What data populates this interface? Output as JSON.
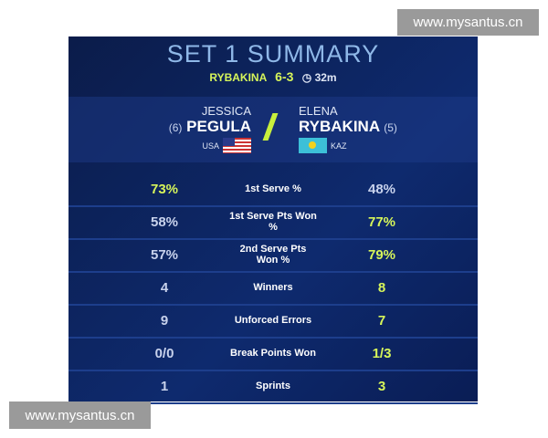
{
  "watermark": "www.mysantus.cn",
  "header": {
    "title": "SET 1 SUMMARY",
    "winner": "RYBAKINA",
    "score": "6-3",
    "clock_icon": "clock-icon",
    "duration": "32m"
  },
  "players": [
    {
      "first": "JESSICA",
      "last": "PEGULA",
      "seed": "(6)",
      "country": "USA"
    },
    {
      "first": "ELENA",
      "last": "RYBAKINA",
      "seed": "(5)",
      "country": "KAZ"
    }
  ],
  "highlight_color": "#d6f55a",
  "stats": [
    {
      "label": "1st Serve %",
      "left": "73%",
      "right": "48%",
      "leader": "left"
    },
    {
      "label": "1st Serve Pts Won %",
      "left": "58%",
      "right": "77%",
      "leader": "right"
    },
    {
      "label": "2nd Serve Pts Won %",
      "left": "57%",
      "right": "79%",
      "leader": "right"
    },
    {
      "label": "Winners",
      "left": "4",
      "right": "8",
      "leader": "right"
    },
    {
      "label": "Unforced Errors",
      "left": "9",
      "right": "7",
      "leader": "right"
    },
    {
      "label": "Break Points Won",
      "left": "0/0",
      "right": "1/3",
      "leader": "right"
    },
    {
      "label": "Sprints",
      "left": "1",
      "right": "3",
      "leader": "right"
    }
  ]
}
